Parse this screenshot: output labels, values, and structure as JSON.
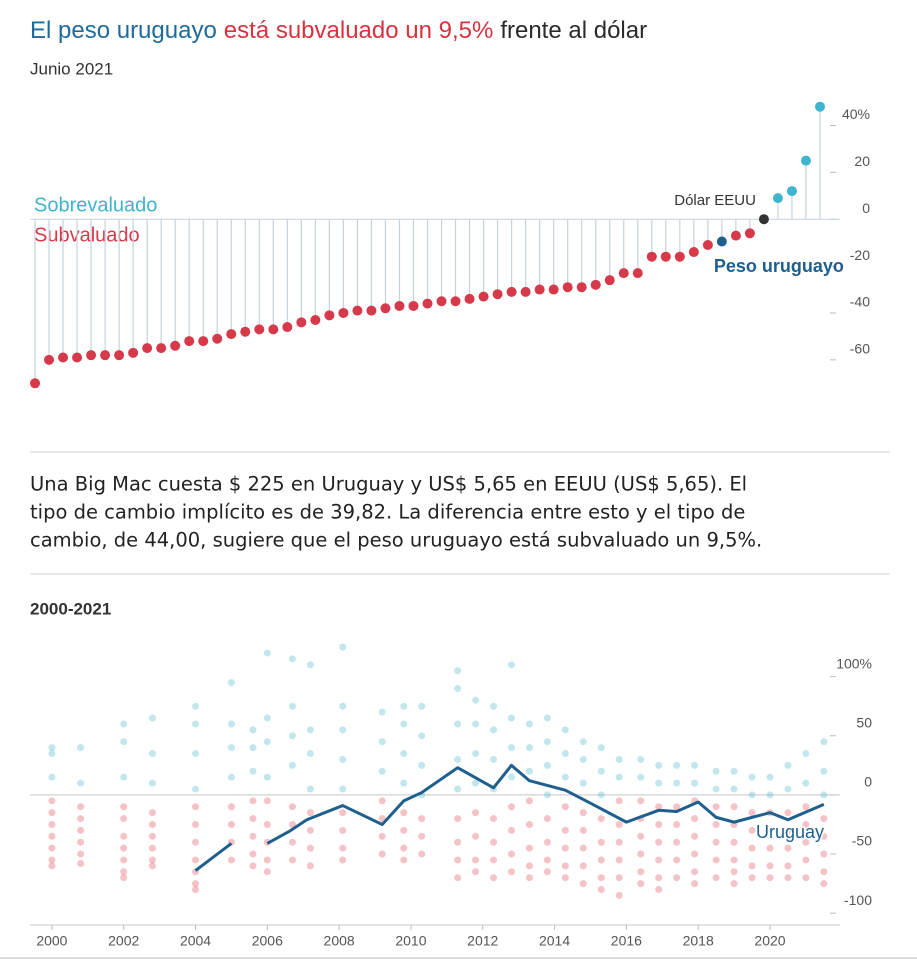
{
  "title_parts": [
    {
      "text": "El peso uruguayo",
      "color": "#1f6a9c"
    },
    {
      "text": "está subvaluado un 9,5%",
      "color": "#d9323f"
    },
    {
      "text": "frente al dólar",
      "color": "#2b2b2b"
    }
  ],
  "paragraph": {
    "lines": [
      "Una Big Mac cuesta $ 225 en Uruguay y US$ 5,65 en EEUU (US$ 5,65). El",
      "tipo de cambio implícito es de 39,82. La diferencia entre esto y el tipo de",
      "cambio, de 44,00, sugiere que el peso uruguayo está subvaluado un 9,5%."
    ]
  },
  "chart_data": [
    {
      "type": "lollipop",
      "subtitle": "Junio 2021",
      "values": [
        -70,
        -60,
        -59,
        -59,
        -58,
        -58,
        -58,
        -57,
        -55,
        -55,
        -54,
        -52,
        -52,
        -51,
        -49,
        -48,
        -47,
        -47,
        -46,
        -44,
        -43,
        -41,
        -40,
        -39,
        -39,
        -38,
        -37,
        -37,
        -36,
        -35,
        -35,
        -34,
        -33,
        -32,
        -31,
        -31,
        -30,
        -30,
        -29,
        -29,
        -28,
        -26,
        -23,
        -23,
        -16,
        -16,
        -16,
        -14,
        -11,
        -9.5,
        -7,
        -6,
        0,
        9,
        12,
        25,
        48
      ],
      "positive_label": "Sobrevaluado",
      "positive_color": "#3db5cc",
      "negative_label": "Subvaluado",
      "negative_color": "#d6394a",
      "highlights": [
        {
          "index": 49,
          "label": "Peso uruguayo",
          "color": "#1e5f8e"
        },
        {
          "index": 52,
          "label": "Dólar EEUU",
          "color": "#333333"
        }
      ],
      "ylim": [
        -75,
        53
      ],
      "yticks": [
        {
          "value": 40,
          "label": "40%"
        },
        20,
        0,
        -20,
        -40,
        -60
      ]
    },
    {
      "type": "scatter",
      "subtitle": "2000-2021",
      "positive_color": "#4fb8cf",
      "negative_color": "#e0505e",
      "groups": [
        {
          "x": 2000,
          "values": [
            40,
            35,
            15,
            -5,
            -15,
            -25,
            -35,
            -45,
            -55,
            -60
          ]
        },
        {
          "x": 2000.8,
          "values": [
            40,
            10,
            -10,
            -20,
            -30,
            -40,
            -50,
            -58
          ]
        },
        {
          "x": 2002,
          "values": [
            60,
            45,
            15,
            -10,
            -20,
            -35,
            -45,
            -55,
            -65,
            -70
          ]
        },
        {
          "x": 2002.8,
          "values": [
            65,
            35,
            10,
            -15,
            -25,
            -35,
            -45,
            -55,
            -60
          ]
        },
        {
          "x": 2004,
          "values": [
            75,
            60,
            35,
            5,
            -10,
            -25,
            -40,
            -55,
            -65,
            -75,
            -80
          ]
        },
        {
          "x": 2005,
          "values": [
            95,
            60,
            40,
            15,
            -10,
            -25,
            -40,
            -55
          ]
        },
        {
          "x": 2005.6,
          "values": [
            55,
            40,
            20,
            -5,
            -20,
            -35,
            -50,
            -60
          ]
        },
        {
          "x": 2006,
          "values": [
            120,
            65,
            45,
            15,
            -5,
            -25,
            -40,
            -55,
            -65
          ]
        },
        {
          "x": 2006.7,
          "values": [
            115,
            75,
            50,
            25,
            -10,
            -25,
            -40,
            -55
          ]
        },
        {
          "x": 2007.2,
          "values": [
            110,
            55,
            35,
            5,
            -15,
            -30,
            -45,
            -60
          ]
        },
        {
          "x": 2008.1,
          "values": [
            125,
            75,
            55,
            30,
            5,
            -15,
            -30,
            -45,
            -55
          ]
        },
        {
          "x": 2009.2,
          "values": [
            70,
            45,
            20,
            -5,
            -20,
            -35,
            -50
          ]
        },
        {
          "x": 2009.8,
          "values": [
            75,
            60,
            35,
            10,
            -15,
            -30,
            -45,
            -55
          ]
        },
        {
          "x": 2010.3,
          "values": [
            75,
            50,
            25,
            0,
            -20,
            -35,
            -50
          ]
        },
        {
          "x": 2011.3,
          "values": [
            105,
            90,
            60,
            30,
            5,
            -20,
            -40,
            -55,
            -70
          ]
        },
        {
          "x": 2011.8,
          "values": [
            80,
            60,
            35,
            10,
            -15,
            -35,
            -55,
            -65
          ]
        },
        {
          "x": 2012.3,
          "values": [
            75,
            55,
            30,
            5,
            -20,
            -40,
            -55,
            -70
          ]
        },
        {
          "x": 2012.8,
          "values": [
            110,
            65,
            40,
            15,
            -10,
            -30,
            -50,
            -65
          ]
        },
        {
          "x": 2013.3,
          "values": [
            60,
            40,
            20,
            -5,
            -25,
            -45,
            -60,
            -70
          ]
        },
        {
          "x": 2013.8,
          "values": [
            65,
            45,
            25,
            0,
            -20,
            -40,
            -55,
            -65
          ]
        },
        {
          "x": 2014.3,
          "values": [
            55,
            35,
            15,
            -10,
            -30,
            -45,
            -60,
            -70
          ]
        },
        {
          "x": 2014.8,
          "values": [
            45,
            30,
            10,
            -15,
            -30,
            -45,
            -60,
            -75
          ]
        },
        {
          "x": 2015.3,
          "values": [
            40,
            20,
            0,
            -20,
            -40,
            -55,
            -70,
            -80
          ]
        },
        {
          "x": 2015.8,
          "values": [
            30,
            15,
            -5,
            -25,
            -40,
            -55,
            -70,
            -85
          ]
        },
        {
          "x": 2016.4,
          "values": [
            30,
            15,
            -5,
            -20,
            -35,
            -50,
            -65,
            -75
          ]
        },
        {
          "x": 2016.9,
          "values": [
            25,
            10,
            -10,
            -25,
            -40,
            -55,
            -70,
            -80
          ]
        },
        {
          "x": 2017.4,
          "values": [
            25,
            10,
            -10,
            -25,
            -40,
            -55,
            -70
          ]
        },
        {
          "x": 2017.9,
          "values": [
            25,
            10,
            -5,
            -20,
            -35,
            -50,
            -65,
            -75
          ]
        },
        {
          "x": 2018.5,
          "values": [
            20,
            5,
            -10,
            -25,
            -40,
            -55,
            -70
          ]
        },
        {
          "x": 2019.0,
          "values": [
            20,
            5,
            -10,
            -25,
            -40,
            -55,
            -65,
            -75
          ]
        },
        {
          "x": 2019.5,
          "values": [
            15,
            0,
            -15,
            -30,
            -45,
            -60,
            -70
          ]
        },
        {
          "x": 2020.0,
          "values": [
            15,
            0,
            -15,
            -30,
            -45,
            -60,
            -70
          ]
        },
        {
          "x": 2020.5,
          "values": [
            25,
            5,
            -15,
            -30,
            -45,
            -60,
            -70
          ]
        },
        {
          "x": 2021.0,
          "values": [
            35,
            10,
            -10,
            -25,
            -40,
            -55,
            -70
          ]
        },
        {
          "x": 2021.5,
          "values": [
            45,
            20,
            0,
            -20,
            -35,
            -50,
            -65,
            -75
          ]
        }
      ],
      "line": {
        "name": "Uruguay",
        "color": "#1e5f8e",
        "x": [
          2004.0,
          2005.0,
          null,
          2006.0,
          2006.6,
          2007.1,
          2008.1,
          2009.2,
          2009.8,
          2010.3,
          2011.3,
          2012.3,
          2012.8,
          2013.3,
          2014.3,
          2015.0,
          2016.0,
          2016.9,
          2017.4,
          2018.0,
          2018.5,
          2019.0,
          2019.5,
          2020.0,
          2020.5,
          2021.5
        ],
        "values": [
          -64,
          -41,
          null,
          -41,
          -31,
          -21,
          -9,
          -25,
          -5,
          2,
          23,
          6,
          25,
          12,
          4,
          -7,
          -23,
          -13,
          -14,
          -6,
          -19,
          -23,
          -19,
          -15,
          -21,
          -8
        ]
      },
      "xlim": [
        1999.39,
        2021.95
      ],
      "xticks": [
        2000,
        2002,
        2004,
        2006,
        2008,
        2010,
        2012,
        2014,
        2016,
        2018,
        2020
      ],
      "ylim": [
        -110,
        131
      ],
      "yticks": [
        {
          "value": 100,
          "label": "100%"
        },
        50,
        0,
        -50,
        -100
      ]
    }
  ]
}
